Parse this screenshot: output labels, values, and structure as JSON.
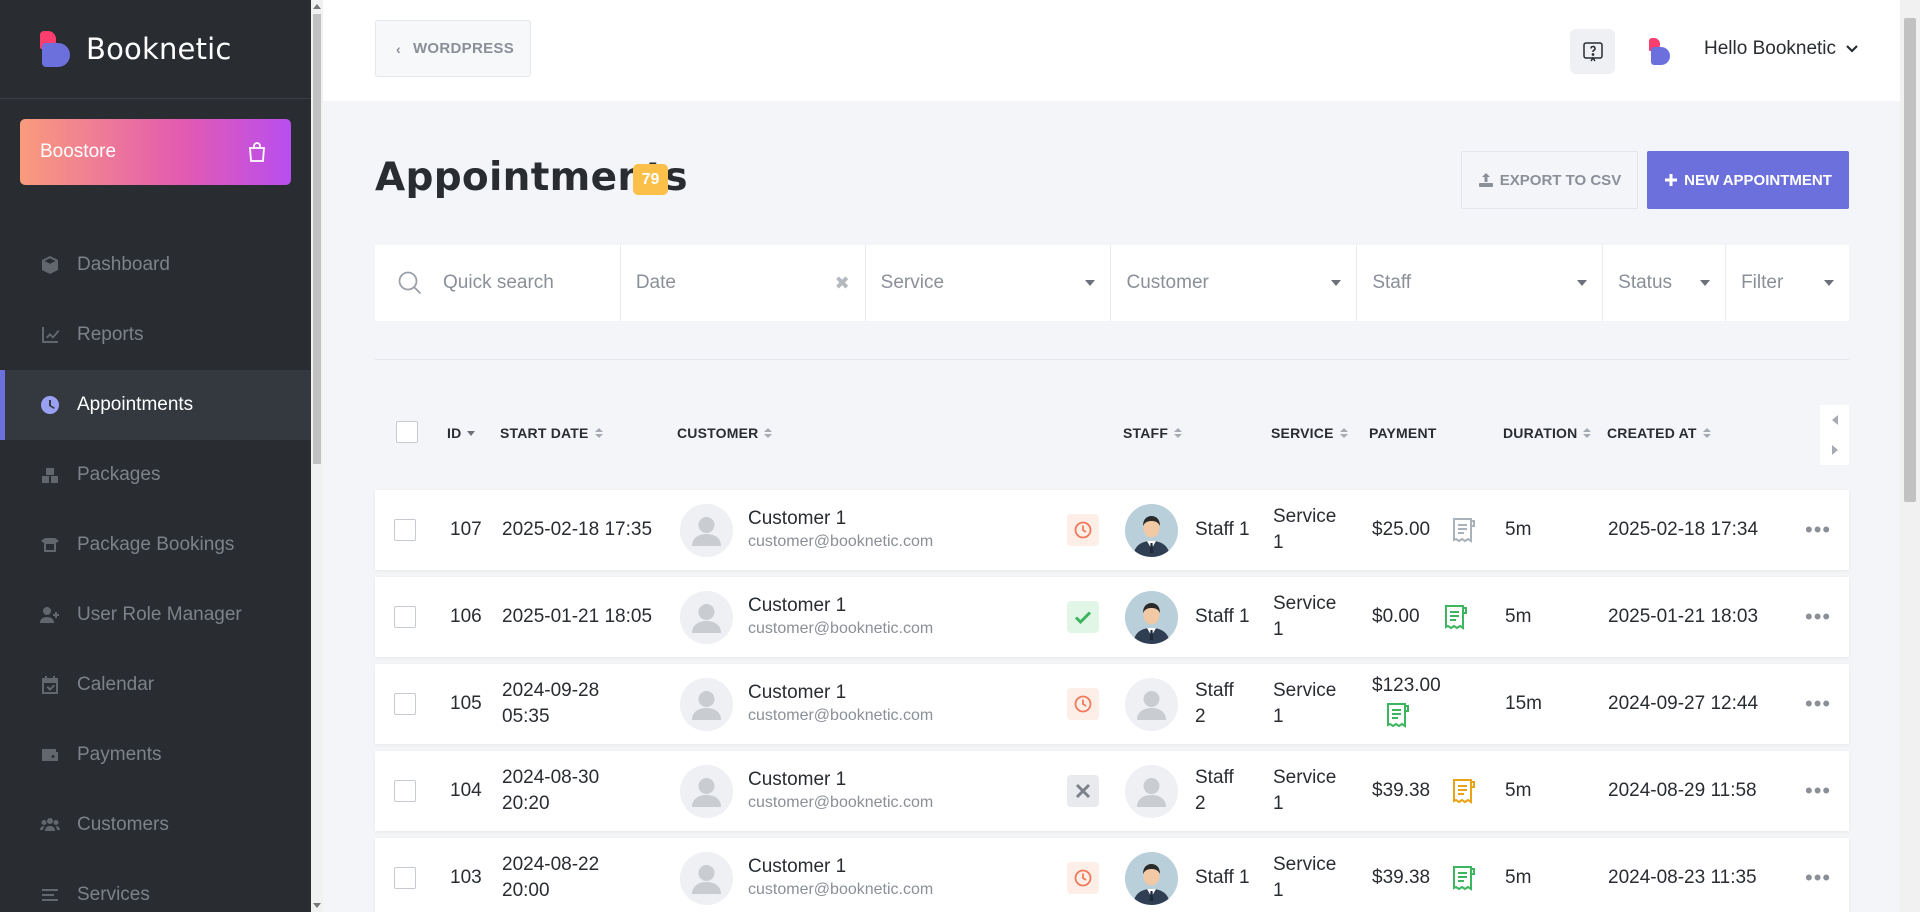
{
  "brand": {
    "name": "Booknetic"
  },
  "boostore": {
    "label": "Boostore"
  },
  "nav": [
    {
      "label": "Dashboard",
      "icon": "cube-icon"
    },
    {
      "label": "Reports",
      "icon": "chart-line-icon"
    },
    {
      "label": "Appointments",
      "icon": "clock-icon",
      "active": true
    },
    {
      "label": "Packages",
      "icon": "boxes-icon"
    },
    {
      "label": "Package Bookings",
      "icon": "box-open-icon"
    },
    {
      "label": "User Role Manager",
      "icon": "user-plus-icon"
    },
    {
      "label": "Calendar",
      "icon": "calendar-check-icon"
    },
    {
      "label": "Payments",
      "icon": "wallet-icon"
    },
    {
      "label": "Customers",
      "icon": "users-icon"
    },
    {
      "label": "Services",
      "icon": "list-icon"
    }
  ],
  "header": {
    "wordpress_label": "WORDPRESS",
    "user_greeting": "Hello Booknetic"
  },
  "page": {
    "title": "Appointments",
    "count": "79",
    "export_label": "EXPORT TO CSV",
    "new_label": "NEW APPOINTMENT"
  },
  "filters": {
    "search_placeholder": "Quick search",
    "date": "Date",
    "service": "Service",
    "customer": "Customer",
    "staff": "Staff",
    "status": "Status",
    "filter": "Filter"
  },
  "columns": {
    "id": "ID",
    "start_date": "START DATE",
    "customer": "CUSTOMER",
    "staff": "STAFF",
    "service": "SERVICE",
    "payment": "PAYMENT",
    "duration": "DURATION",
    "created_at": "CREATED AT"
  },
  "rows": [
    {
      "id": "107",
      "start_line1": "2025-02-18 17:35",
      "start_line2": "",
      "customer_name": "Customer 1",
      "customer_email": "customer@booknetic.com",
      "status": "pending",
      "staff_line1": "Staff 1",
      "staff_line2": "",
      "staff_photo": true,
      "service_line1": "Service",
      "service_line2": "1",
      "payment": "$25.00",
      "receipt_color": "#a9b2bb",
      "duration": "5m",
      "created": "2025-02-18 17:34"
    },
    {
      "id": "106",
      "start_line1": "2025-01-21 18:05",
      "start_line2": "",
      "customer_name": "Customer 1",
      "customer_email": "customer@booknetic.com",
      "status": "approved",
      "staff_line1": "Staff 1",
      "staff_line2": "",
      "staff_photo": true,
      "service_line1": "Service",
      "service_line2": "1",
      "payment": "$0.00",
      "receipt_color": "#3cb55e",
      "duration": "5m",
      "created": "2025-01-21 18:03"
    },
    {
      "id": "105",
      "start_line1": "2024-09-28",
      "start_line2": "05:35",
      "customer_name": "Customer 1",
      "customer_email": "customer@booknetic.com",
      "status": "pending",
      "staff_line1": "Staff",
      "staff_line2": "2",
      "staff_photo": false,
      "service_line1": "Service",
      "service_line2": "1",
      "payment": "$123.00",
      "receipt_color": "#3cb55e",
      "duration": "15m",
      "created": "2024-09-27 12:44"
    },
    {
      "id": "104",
      "start_line1": "2024-08-30",
      "start_line2": "20:20",
      "customer_name": "Customer 1",
      "customer_email": "customer@booknetic.com",
      "status": "canceled",
      "staff_line1": "Staff",
      "staff_line2": "2",
      "staff_photo": false,
      "service_line1": "Service",
      "service_line2": "1",
      "payment": "$39.38",
      "receipt_color": "#e8a317",
      "duration": "5m",
      "created": "2024-08-29 11:58"
    },
    {
      "id": "103",
      "start_line1": "2024-08-22",
      "start_line2": "20:00",
      "customer_name": "Customer 1",
      "customer_email": "customer@booknetic.com",
      "status": "pending",
      "staff_line1": "Staff 1",
      "staff_line2": "",
      "staff_photo": true,
      "service_line1": "Service",
      "service_line2": "1",
      "payment": "$39.38",
      "receipt_color": "#3cb55e",
      "duration": "5m",
      "created": "2024-08-23 11:35"
    }
  ],
  "colors": {
    "accent": "#6c70dc",
    "badge": "#fbc049",
    "sidebar": "#292d32"
  }
}
